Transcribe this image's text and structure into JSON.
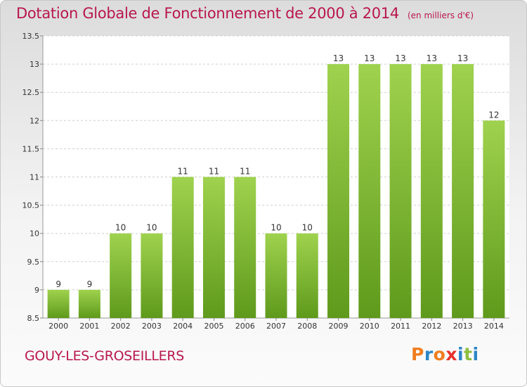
{
  "header": {
    "title": "Dotation Globale de Fonctionnement de 2000 à 2014",
    "subtitle": "(en milliers d'€)"
  },
  "footer": {
    "commune": "GOUY-LES-GROSEILLERS",
    "logo_letters": [
      "P",
      "r",
      "o",
      "x",
      "i",
      "t",
      "i"
    ],
    "logo_colors": [
      "#f07d1e",
      "#2b86c7",
      "#f07d1e",
      "#e8312a",
      "#2b86c7",
      "#8cbf3f",
      "#2b86c7"
    ]
  },
  "colors": {
    "bar_top": "#9fd24e",
    "bar_bottom": "#5f9a1c",
    "title": "#b8174d",
    "grid": "#cfcfcf",
    "axis_text": "#333333"
  },
  "chart_data": {
    "type": "bar",
    "categories": [
      "2000",
      "2001",
      "2002",
      "2003",
      "2004",
      "2005",
      "2006",
      "2007",
      "2008",
      "2009",
      "2010",
      "2011",
      "2012",
      "2013",
      "2014"
    ],
    "values": [
      9,
      9,
      10,
      10,
      11,
      11,
      11,
      10,
      10,
      13,
      13,
      13,
      13,
      13,
      12
    ],
    "data_labels": [
      "9",
      "9",
      "10",
      "10",
      "11",
      "11",
      "11",
      "10",
      "10",
      "13",
      "13",
      "13",
      "13",
      "13",
      "12"
    ],
    "y_ticks": [
      "8.5",
      "9",
      "9.5",
      "10",
      "10.5",
      "11",
      "11.5",
      "12",
      "12.5",
      "13",
      "13.5"
    ],
    "ylim": [
      8.5,
      13.5
    ],
    "grid": true
  }
}
